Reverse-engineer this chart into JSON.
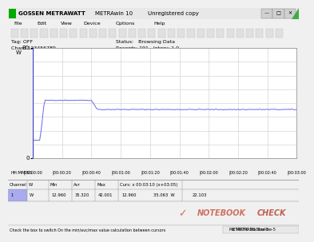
{
  "title_left": "GOSSEN METRAWATT",
  "title_mid": "METRAwin 10",
  "title_right": "Unregistered copy",
  "menu": "File    Edit    View    Device    Options    Help",
  "tag": "Tag: OFF",
  "chan": "Chan: 123456789",
  "status_label": "Status:   Browsing Data",
  "records_label": "Records: 191   Interv: 1.0",
  "y_max_label": "80",
  "y_min_label": "0",
  "y_unit": "W",
  "x_labels": [
    "00:00:00",
    "00:00:20",
    "00:00:40",
    "00:01:00",
    "00:01:20",
    "00:01:40",
    "00:02:00",
    "00:02:20",
    "00:02:40",
    "00:03:00"
  ],
  "x_axis_label": "HH:MM:SS",
  "bg_color": "#f0f0f0",
  "plot_bg": "#ffffff",
  "line_color": "#6666ee",
  "grid_color": "#cccccc",
  "titlebar_color": "#f0f0f0",
  "min_val": "12.960",
  "avg_val": "35.320",
  "max_val": "42.001",
  "cursor_header": "Curs: x 00:03:10 (x+03:05)",
  "cursor_val1": "12.960",
  "cursor_val2": "35.063",
  "cursor_unit": "W",
  "extra_val": "22.103",
  "channel": "1",
  "ch_unit": "W",
  "col_headers": [
    "Channel",
    "W",
    "Min",
    "Avr",
    "Max"
  ],
  "status_bar": "Check the box to switch On the min/avc/max value calculation between cursors",
  "status_bar_right": "METRAH6 Starline-5",
  "notebookcheck_color_check": "#d07060",
  "notebookcheck_color_notebook": "#d07060",
  "notebookcheck_color_check2": "#c06050"
}
